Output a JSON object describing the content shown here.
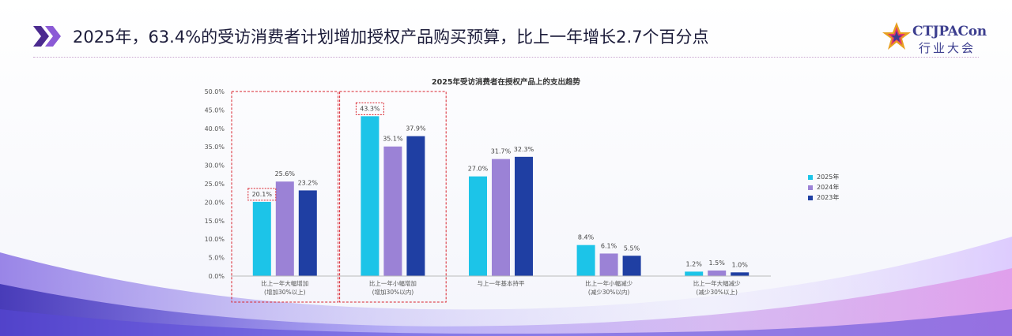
{
  "header": {
    "title": "2025年，63.4%的受访消费者计划增加授权产品购买预算，比上一年增长2.7个百分点",
    "chevron_icon": "double-chevron-right-icon"
  },
  "logo": {
    "main": "CTJPACon",
    "sub": "行业大会",
    "icon": "star-logo-icon"
  },
  "colors": {
    "series_2025": "#1cc4e8",
    "series_2024": "#9b82d6",
    "series_2023": "#1f3fa3",
    "highlight": "#d9232d",
    "chevron_1": "#4b2a8f",
    "chevron_2": "#8b5ad6"
  },
  "chart_data": {
    "type": "bar",
    "title": "2025年受访消费者在授权产品上的支出趋势",
    "categories": [
      {
        "line1": "比上一年大幅增加",
        "line2": "(增加30%以上)"
      },
      {
        "line1": "比上一年小幅增加",
        "line2": "(增加30%以内)"
      },
      {
        "line1": "与上一年基本持平",
        "line2": ""
      },
      {
        "line1": "比上一年小幅减少",
        "line2": "(减少30%以内)"
      },
      {
        "line1": "比上一年大幅减少",
        "line2": "(减少30%以上)"
      }
    ],
    "series": [
      {
        "name": "2025年",
        "values": [
          20.1,
          43.3,
          27.0,
          8.4,
          1.2
        ],
        "labels": [
          "20.1%",
          "43.3%",
          "27.0%",
          "8.4%",
          "1.2%"
        ]
      },
      {
        "name": "2024年",
        "values": [
          25.6,
          35.1,
          31.7,
          6.1,
          1.5
        ],
        "labels": [
          "25.6%",
          "35.1%",
          "31.7%",
          "6.1%",
          "1.5%"
        ]
      },
      {
        "name": "2023年",
        "values": [
          23.2,
          37.9,
          32.3,
          5.5,
          1.0
        ],
        "labels": [
          "23.2%",
          "37.9%",
          "32.3%",
          "5.5%",
          "1.0%"
        ]
      }
    ],
    "yticks": [
      "0.0%",
      "5.0%",
      "10.0%",
      "15.0%",
      "20.0%",
      "25.0%",
      "30.0%",
      "35.0%",
      "40.0%",
      "45.0%",
      "50.0%"
    ],
    "ylim": [
      0,
      50
    ],
    "highlighted_categories": [
      0,
      1
    ],
    "highlighted_labels": [
      "20.1%",
      "43.3%"
    ],
    "legend_position": "right",
    "grid": false
  }
}
